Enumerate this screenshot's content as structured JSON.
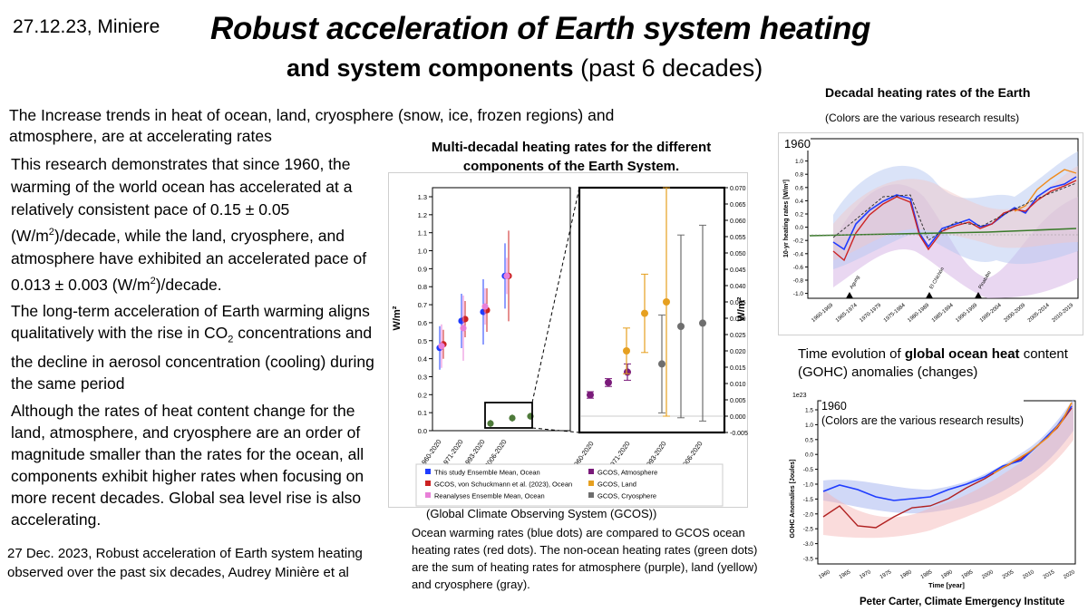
{
  "header": {
    "date_author": "27.12.23, Miniere",
    "title_line1": "Robust acceleration of Earth system heating",
    "title_line2_bold": "and system components",
    "title_line2_rest": " (past 6 decades)"
  },
  "left": {
    "intro": "The Increase trends in heat of ocean, land, cryosphere (snow, ice, frozen regions) and atmosphere, are at accelerating rates",
    "p1_a": "This research demonstrates that since 1960, the warming of the world ocean has accelerated at a relatively consistent pace of 0.15 ± 0.05 (W/m",
    "p1_sup1": "2",
    "p1_b": ")/decade, while the land, cryosphere, and atmosphere have exhibited an accelerated pace of 0.013 ± 0.003 (W/m",
    "p1_sup2": "2",
    "p1_c": ")/decade.",
    "p2_a": "The long-term acceleration of Earth warming aligns qualitatively with the rise in CO",
    "p2_sub": "2",
    "p2_b": " concentrations and the decline in aerosol concentration (cooling) during the same period",
    "p3": "Although the rates of heat content change for the land, atmosphere, and cryosphere are an order of magnitude smaller than the rates for the ocean, all components exhibit higher rates when focusing on more recent decades. Global sea level rise is also accelerating.",
    "citation": "27 Dec. 2023, Robust acceleration of Earth system heating observed over the past six decades, Audrey Minière et al"
  },
  "center": {
    "title": "Multi-decadal heating rates for the different components of the Earth System.",
    "ylabel": "W/m²",
    "left_yticks": [
      "1.3",
      "1.2",
      "1.1",
      "1.0",
      "0.9",
      "0.8",
      "0.7",
      "0.6",
      "0.5",
      "0.4",
      "0.3",
      "0.2",
      "0.1",
      "0.0"
    ],
    "right_yticks": [
      "0.070",
      "0.065",
      "0.060",
      "0.055",
      "0.050",
      "0.045",
      "0.040",
      "0.035",
      "0.030",
      "0.025",
      "0.020",
      "0.015",
      "0.010",
      "0.005",
      "0.000",
      "-0.005"
    ],
    "xticks": [
      "1960-2020",
      "1971-2020",
      "1993-2020",
      "2006-2020"
    ],
    "legend": [
      {
        "label": "This study Ensemble Mean, Ocean",
        "color": "#1f3cff"
      },
      {
        "label": "GCOS, von Schuckmann et al. (2023), Ocean",
        "color": "#cc2222"
      },
      {
        "label": "Reanalyses Ensemble Mean, Ocean",
        "color": "#e880d8"
      },
      {
        "label": "GCOS, Atmosphere",
        "color": "#7a1a7a"
      },
      {
        "label": "GCOS, Land",
        "color": "#e6a020"
      },
      {
        "label": "GCOS, Cryosphere",
        "color": "#6e6e6e"
      }
    ],
    "gcos_note": "(Global Climate Observing System (GCOS))",
    "caption": "Ocean warming rates (blue dots) are compared to GCOS ocean heating rates (red dots). The non-ocean heating rates (green dots) are the sum of heating rates for atmosphere (purple), land (yellow) and cryosphere (gray)."
  },
  "right": {
    "title": "Decadal heating rates of the Earth",
    "subtitle": "(Colors are the various research results)",
    "decadal_year": "1960",
    "decadal_ylabel": "10-yr heating rates [W/m²]",
    "decadal_yticks": [
      "1.2",
      "1.0",
      "0.8",
      "0.6",
      "0.4",
      "0.2",
      "0.0",
      "-0.2",
      "-0.4",
      "-0.6",
      "-0.8",
      "-1.0"
    ],
    "decadal_xticks": [
      "1960-1969",
      "1965-1974",
      "1970-1979",
      "1975-1984",
      "1980-1989",
      "1985-1994",
      "1990-1999",
      "1995-2004",
      "2000-2009",
      "2005-2014",
      "2010-2019"
    ],
    "volcanoes": [
      "Agung",
      "El Chichón",
      "Pinatubo"
    ],
    "gohc_title_a": "Time evolution of ",
    "gohc_title_bold": "global ocean heat",
    "gohc_title_b": " content (GOHC) anomalies (changes)",
    "gohc_year": "1960",
    "gohc_note": "(Colors are the various research results)",
    "gohc_exp": "1e23",
    "gohc_ylabel": "GOHC Anomalies [Joules]",
    "gohc_xlabel": "Time [year]",
    "gohc_yticks": [
      "1.5",
      "1.0",
      "0.5",
      "0.0",
      "-0.5",
      "-1.0",
      "-1.5",
      "-2.0",
      "-2.5",
      "-3.0",
      "-3.5"
    ],
    "gohc_xticks": [
      "1960",
      "1965",
      "1970",
      "1975",
      "1980",
      "1985",
      "1990",
      "1995",
      "2000",
      "2005",
      "2010",
      "2015",
      "2020"
    ],
    "credit": "Peter Carter, Climate Emergency Institute"
  },
  "chart_data": [
    {
      "type": "scatter",
      "title": "Multi-decadal heating rates for the different components of the Earth System.",
      "ylabel": "W/m²",
      "ylim": [
        0,
        1.3
      ],
      "categories": [
        "1960-2020",
        "1971-2020",
        "1993-2020",
        "2006-2020"
      ],
      "series": [
        {
          "name": "This study Ensemble Mean, Ocean",
          "values": [
            0.46,
            0.61,
            0.66,
            0.86
          ]
        },
        {
          "name": "GCOS, von Schuckmann et al. (2023), Ocean",
          "values": [
            0.48,
            0.62,
            0.67,
            0.86
          ]
        },
        {
          "name": "Reanalyses Ensemble Mean, Ocean",
          "values": [
            0.47,
            0.57,
            0.69,
            0.86
          ]
        },
        {
          "values": [
            null,
            0.04,
            0.07,
            0.08
          ]
        }
      ]
    },
    {
      "type": "scatter",
      "ylabel": "W/m²",
      "ylim": [
        -0.005,
        0.07
      ],
      "categories": [
        "1960-2020",
        "1971-2020",
        "1993-2020",
        "2006-2020"
      ],
      "series": [
        {
          "name": "GCOS, Atmosphere",
          "values": [
            null,
            0.0065,
            0.0103,
            0.0135
          ]
        },
        {
          "name": "GCOS, Land",
          "values": [
            null,
            0.02,
            0.0315,
            0.035
          ]
        },
        {
          "name": "GCOS, Cryosphere",
          "values": [
            null,
            0.016,
            0.0275,
            0.0285
          ]
        }
      ]
    }
  ]
}
